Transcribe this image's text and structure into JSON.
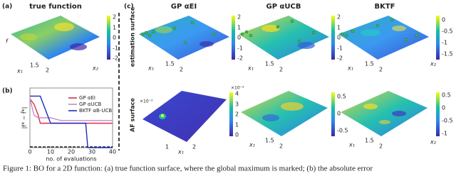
{
  "panel_a": {
    "label": "(a)",
    "title": "true function",
    "axis_f": "f",
    "axis_x1": "x₁",
    "axis_x2": "x₂",
    "x1_ticks": [
      "1.5",
      "2"
    ],
    "colorbar_ticks": [
      "2",
      "1",
      "0",
      "-1",
      "-2"
    ]
  },
  "panel_b": {
    "label": "(b)",
    "type": "line",
    "xlabel": "no. of evaluations",
    "ylabel": "|f* − f̂*|",
    "x": [
      0,
      2,
      4,
      5,
      10,
      15,
      20,
      25,
      27,
      28,
      30,
      35,
      40
    ],
    "xlim": [
      0,
      40
    ],
    "xticks": [
      0,
      10,
      20,
      30,
      40
    ],
    "ylim": [
      0,
      1.1
    ],
    "series": [
      {
        "name": "GP αEI",
        "color": "#d6304a",
        "values": [
          0.9,
          0.8,
          0.6,
          0.45,
          0.45,
          0.45,
          0.45,
          0.45,
          0.45,
          0.45,
          0.45,
          0.45,
          0.45
        ]
      },
      {
        "name": "GP αUCB",
        "color": "#c58bc9",
        "values": [
          0.9,
          0.6,
          0.55,
          0.55,
          0.55,
          0.5,
          0.5,
          0.5,
          0.5,
          0.5,
          0.5,
          0.5,
          0.5
        ]
      },
      {
        "name": "BKTF αB-UCB",
        "color": "#1a2fc0",
        "values": [
          0.95,
          0.95,
          0.95,
          0.95,
          0.45,
          0.45,
          0.45,
          0.45,
          0.45,
          0,
          0,
          0,
          0
        ]
      }
    ]
  },
  "panel_c": {
    "label": "(c)",
    "columns": [
      "GP αEI",
      "GP αUCB",
      "BKTF"
    ],
    "rows": [
      "estimation surface",
      "AF surface"
    ],
    "axis_x1": "x₁",
    "axis_x2": "x₂",
    "x1_ticks": [
      "1.5",
      "2"
    ],
    "af_x_ticks": [
      "1",
      "2"
    ],
    "colorbars": {
      "est_gp_ei": [
        "2",
        "1",
        "0",
        "-1",
        "-2"
      ],
      "est_gp_ucb": [
        "2",
        "1",
        "0",
        "-1",
        "-2"
      ],
      "est_bktf": [
        "0",
        "-0.5",
        "-1",
        "-1.5"
      ],
      "af_gp_ei_scale": "×10⁻³",
      "af_gp_ei": [
        "4",
        "3",
        "2",
        "1",
        "0"
      ],
      "af_gp_ucb": [
        "0.5",
        "0",
        "-0.5"
      ],
      "af_bktf": [
        "0.5",
        "0",
        "-0.5",
        "-1"
      ]
    }
  },
  "caption": "Figure 1: BO for a 2D function: (a) true function surface, where the global maximum is marked; (b) the absolute error"
}
